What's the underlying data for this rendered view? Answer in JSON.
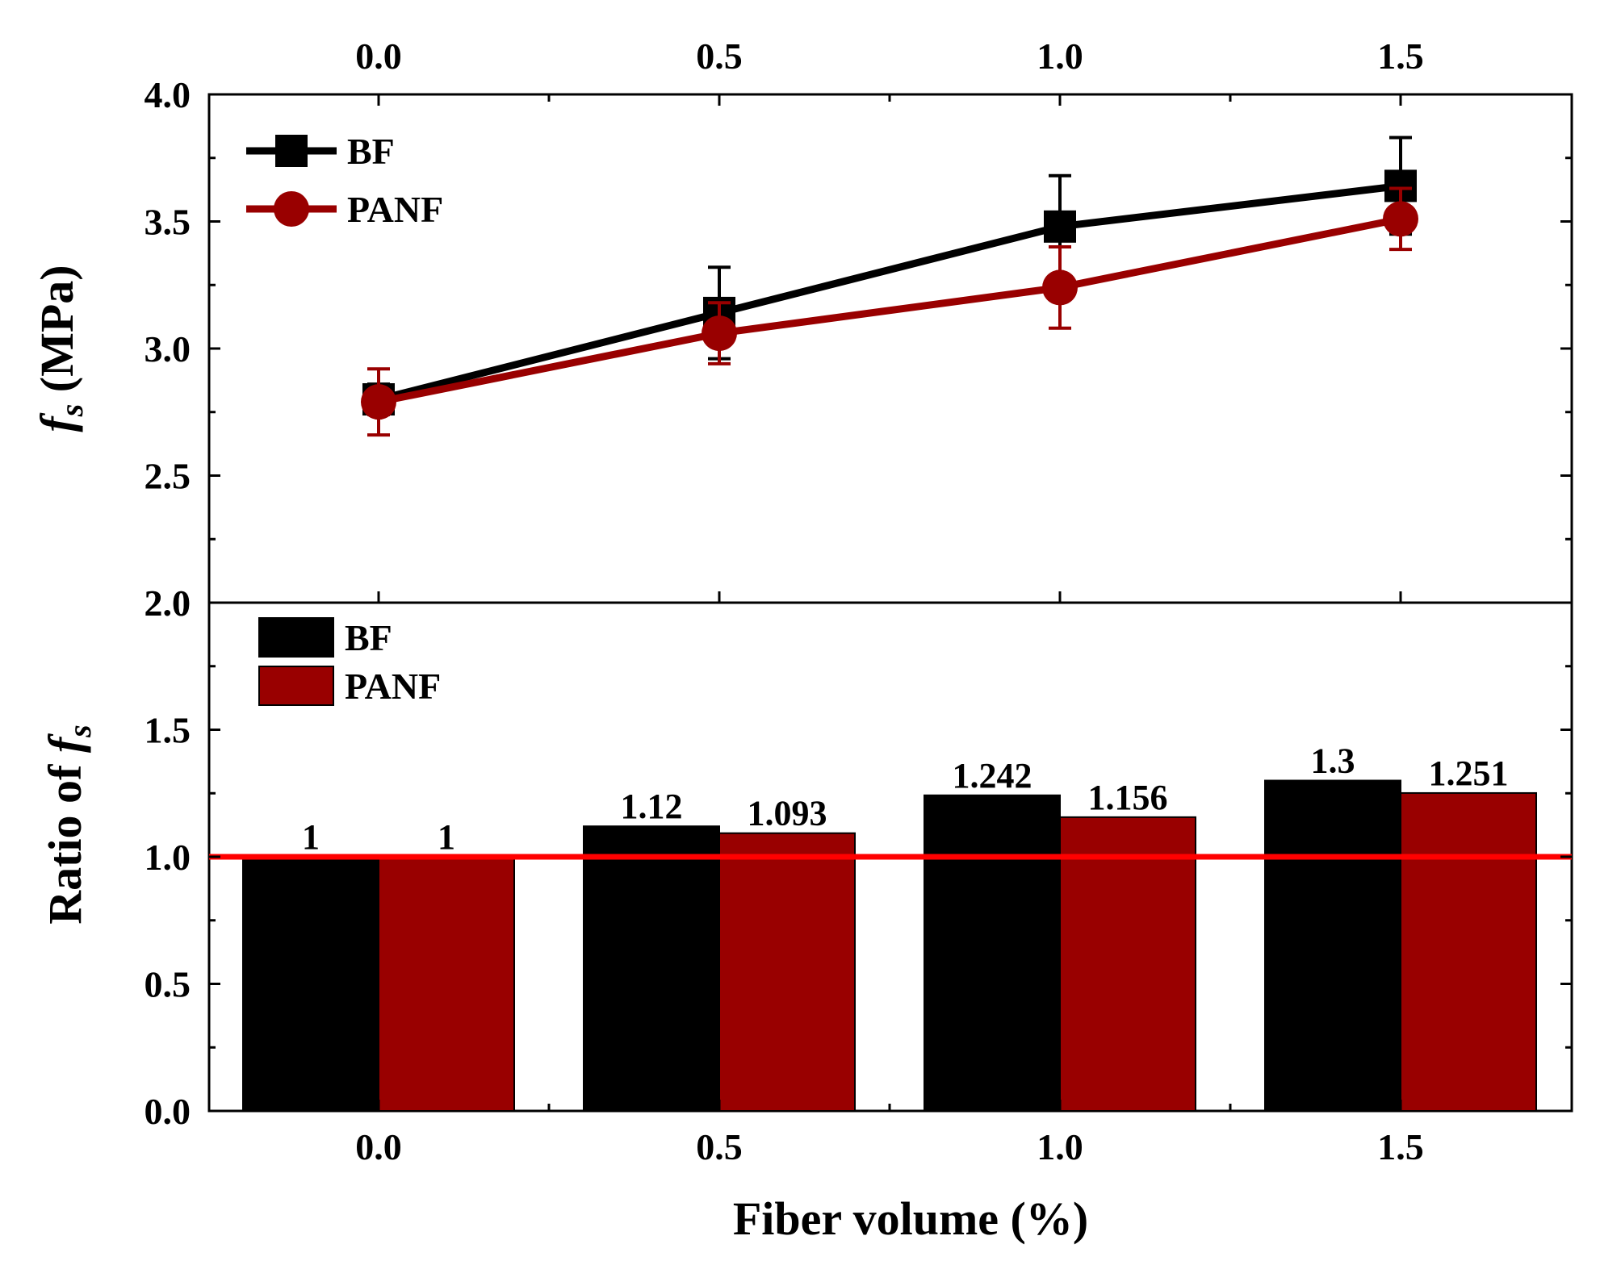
{
  "chart_data": [
    {
      "type": "line",
      "panel": "top",
      "ylabel_main": "f",
      "ylabel_sub": "s",
      "ylabel_rest": " (MPa)",
      "x": [
        0.0,
        0.5,
        1.0,
        1.5
      ],
      "x_tick_labels": [
        "0.0",
        "0.5",
        "1.0",
        "1.5"
      ],
      "ylim": [
        2.0,
        4.0
      ],
      "y_tick_labels": [
        "2.0",
        "2.5",
        "3.0",
        "3.5",
        "4.0"
      ],
      "legend_position": "top-left",
      "series": [
        {
          "name": "BF",
          "marker": "square",
          "color": "#000000",
          "values": [
            2.8,
            3.14,
            3.48,
            3.64
          ],
          "error": [
            0.06,
            0.18,
            0.2,
            0.19
          ]
        },
        {
          "name": "PANF",
          "marker": "circle",
          "color": "#990000",
          "values": [
            2.79,
            3.06,
            3.24,
            3.51
          ],
          "error": [
            0.13,
            0.12,
            0.16,
            0.12
          ]
        }
      ]
    },
    {
      "type": "bar",
      "panel": "bottom",
      "ylabel_main": "Ratio of ",
      "ylabel_f": "f",
      "ylabel_sub": "s",
      "xlabel": "Fiber volume (%)",
      "categories": [
        "0.0",
        "0.5",
        "1.0",
        "1.5"
      ],
      "ylim": [
        0.0,
        2.0
      ],
      "y_tick_labels": [
        "0.0",
        "0.5",
        "1.0",
        "1.5"
      ],
      "reference_line": {
        "y": 1.0,
        "color": "#ff0000"
      },
      "legend_position": "top-left",
      "series": [
        {
          "name": "BF",
          "color": "#000000",
          "values": [
            1,
            1.12,
            1.242,
            1.3
          ],
          "labels": [
            "1",
            "1.12",
            "1.242",
            "1.3"
          ]
        },
        {
          "name": "PANF",
          "color": "#990000",
          "values": [
            1,
            1.093,
            1.156,
            1.251
          ],
          "labels": [
            "1",
            "1.093",
            "1.156",
            "1.251"
          ]
        }
      ]
    }
  ]
}
